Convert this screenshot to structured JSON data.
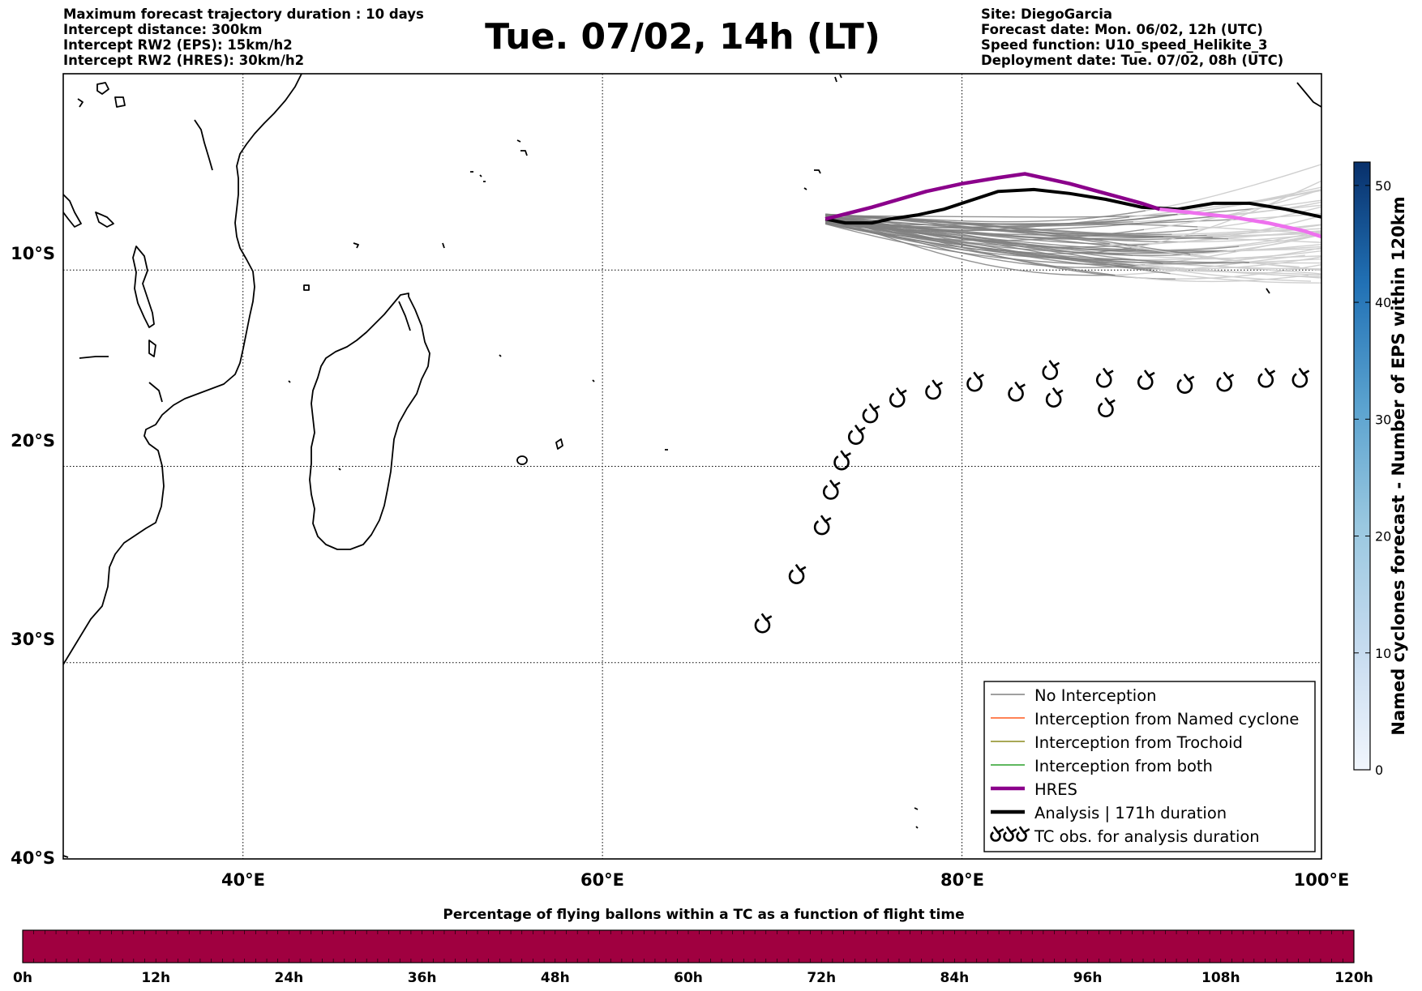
{
  "header_left": [
    "Maximum forecast trajectory duration : 10 days",
    "Intercept distance: 300km",
    "Intercept RW2 (EPS):  15km/h2",
    "Intercept RW2 (HRES): 30km/h2"
  ],
  "header_right": [
    "Site: DiegoGarcia",
    "Forecast date: Mon. 06/02, 12h (UTC)",
    "Speed function: U10_speed_Helikite_3",
    "Deployment date: Tue. 07/02, 08h (UTC)"
  ],
  "title": "Tue. 07/02, 14h (LT)",
  "map": {
    "lon_range": [
      30,
      100
    ],
    "lat_range": [
      -40,
      0
    ],
    "lon_ticks": [
      "40°E",
      "60°E",
      "80°E",
      "100°E"
    ],
    "lat_ticks": [
      "10°S",
      "20°S",
      "30°S",
      "40°S"
    ],
    "grid": "dotted"
  },
  "colors": {
    "no_interception": "#808080",
    "named_cyclone": "#ff5a1e",
    "trochoid": "#8c8c1e",
    "both": "#2aa02a",
    "hres": "#8b008b",
    "hres_tail": "#ee70ee",
    "analysis": "#000000",
    "time_bar": "#a00040"
  },
  "legend": {
    "items": [
      {
        "label": "No Interception",
        "style": "thin-gray"
      },
      {
        "label": "Interception from Named cyclone",
        "style": "thin-orange"
      },
      {
        "label": "Interception from Trochoid",
        "style": "thin-olive"
      },
      {
        "label": "Interception from both",
        "style": "thin-green"
      },
      {
        "label": "HRES",
        "style": "thick-purple"
      },
      {
        "label": "Analysis | 171h duration",
        "style": "thick-black"
      },
      {
        "label": "TC obs. for analysis duration",
        "style": "tc-symbols"
      }
    ]
  },
  "colorbar": {
    "label": "Named cyclones forecast - Number of EPS within 120km",
    "ticks": [
      "0",
      "10",
      "20",
      "30",
      "40",
      "50"
    ],
    "range": [
      0,
      52
    ]
  },
  "time_bar": {
    "title": "Percentage of flying ballons within a TC as a function of flight time",
    "ticks": [
      "0h",
      "12h",
      "24h",
      "36h",
      "48h",
      "60h",
      "72h",
      "84h",
      "96h",
      "108h",
      "120h"
    ]
  },
  "start_point": {
    "lon": 72.4,
    "lat": -7.4
  },
  "hres_track": [
    [
      72.4,
      -7.4
    ],
    [
      75,
      -6.8
    ],
    [
      78,
      -6.0
    ],
    [
      80,
      -5.6
    ],
    [
      82,
      -5.3
    ],
    [
      83.5,
      -5.1
    ],
    [
      86,
      -5.6
    ],
    [
      88,
      -6.1
    ],
    [
      90,
      -6.6
    ],
    [
      91,
      -6.9
    ],
    [
      93,
      -7.1
    ],
    [
      95,
      -7.3
    ],
    [
      97,
      -7.6
    ],
    [
      99,
      -8.0
    ],
    [
      100,
      -8.3
    ]
  ],
  "analysis_track": [
    [
      72.4,
      -7.4
    ],
    [
      73.5,
      -7.6
    ],
    [
      75,
      -7.6
    ],
    [
      76,
      -7.4
    ],
    [
      77.5,
      -7.2
    ],
    [
      79,
      -6.9
    ],
    [
      80,
      -6.6
    ],
    [
      82,
      -6.0
    ],
    [
      84,
      -5.9
    ],
    [
      86,
      -6.1
    ],
    [
      88,
      -6.4
    ],
    [
      90,
      -6.8
    ],
    [
      92,
      -6.9
    ],
    [
      94,
      -6.6
    ],
    [
      96,
      -6.6
    ],
    [
      98,
      -6.9
    ],
    [
      100,
      -7.3
    ]
  ],
  "tc_observations": [
    [
      68.9,
      -28.1
    ],
    [
      70.8,
      -25.6
    ],
    [
      72.2,
      -23.1
    ],
    [
      72.7,
      -21.3
    ],
    [
      73.3,
      -19.8
    ],
    [
      74.1,
      -18.5
    ],
    [
      74.9,
      -17.4
    ],
    [
      76.4,
      -16.6
    ],
    [
      78.4,
      -16.2
    ],
    [
      80.7,
      -15.8
    ],
    [
      83.0,
      -16.3
    ],
    [
      84.9,
      -15.2
    ],
    [
      85.1,
      -16.6
    ],
    [
      87.9,
      -15.6
    ],
    [
      88.0,
      -17.1
    ],
    [
      90.2,
      -15.7
    ],
    [
      92.4,
      -15.9
    ],
    [
      94.6,
      -15.8
    ],
    [
      96.9,
      -15.6
    ],
    [
      98.8,
      -15.6
    ]
  ]
}
